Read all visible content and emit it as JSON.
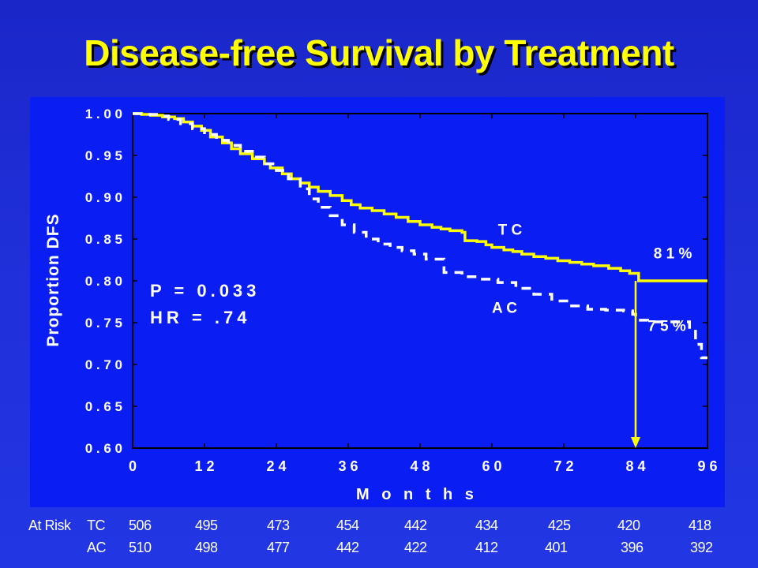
{
  "title": "Disease-free Survival by Treatment",
  "stats": {
    "p_value": "P = 0.033",
    "hazard_ratio": "HR = .74"
  },
  "at_risk": {
    "label": "At Risk",
    "rows": [
      {
        "arm": "TC",
        "counts": [
          "506",
          "495",
          "473",
          "454",
          "442",
          "434",
          "425",
          "420",
          "418"
        ]
      },
      {
        "arm": "AC",
        "counts": [
          "510",
          "498",
          "477",
          "442",
          "422",
          "412",
          "401",
          "396",
          "392"
        ]
      }
    ]
  },
  "colors": {
    "background": "#1f2fd8",
    "plot_area": "#0a1ef4",
    "tc_line": "#ffff00",
    "ac_line": "#ffffff",
    "title": "#ffff00"
  },
  "chart_data": {
    "type": "line",
    "xlabel": "M o n t h s",
    "ylabel": "Proportion DFS",
    "xlim": [
      0,
      96
    ],
    "ylim": [
      0.6,
      1.0
    ],
    "x_ticks": [
      0,
      12,
      24,
      36,
      48,
      60,
      72,
      84,
      96
    ],
    "x_tick_labels": [
      "0",
      "1 2",
      "2 4",
      "3 6",
      "4 8",
      "6 0",
      "7 2",
      "8 4",
      "9 6"
    ],
    "y_ticks": [
      1.0,
      0.95,
      0.9,
      0.85,
      0.8,
      0.75,
      0.7,
      0.65,
      0.6
    ],
    "y_tick_labels": [
      "1 . 0 0",
      "0 . 9 5",
      "0 . 9 0",
      "0 . 8 5",
      "0 . 8 0",
      "0 . 7 5",
      "0 . 7 0",
      "0 . 6 5",
      "0 . 6 0"
    ],
    "grid": false,
    "series": [
      {
        "name": "T C",
        "color": "#ffff00",
        "style": "solid",
        "x": [
          0,
          1.5,
          3,
          5,
          7,
          8.5,
          10,
          11.5,
          13,
          15,
          16.5,
          18,
          20,
          22,
          23,
          25,
          26.5,
          28,
          29.5,
          31,
          33,
          35,
          36.5,
          38,
          40,
          42,
          44,
          46,
          48,
          50,
          51.5,
          53,
          55,
          55.5,
          57.5,
          59,
          60,
          62,
          63.5,
          65,
          67,
          69,
          71,
          73,
          75,
          77,
          79.5,
          81.5,
          83,
          84.5,
          96
        ],
        "y": [
          1.0,
          0.999,
          0.998,
          0.996,
          0.994,
          0.99,
          0.985,
          0.98,
          0.972,
          0.965,
          0.958,
          0.952,
          0.946,
          0.94,
          0.935,
          0.928,
          0.922,
          0.917,
          0.912,
          0.907,
          0.902,
          0.896,
          0.891,
          0.887,
          0.884,
          0.88,
          0.876,
          0.871,
          0.867,
          0.864,
          0.862,
          0.86,
          0.858,
          0.848,
          0.847,
          0.843,
          0.84,
          0.837,
          0.835,
          0.832,
          0.829,
          0.827,
          0.824,
          0.822,
          0.82,
          0.818,
          0.815,
          0.812,
          0.809,
          0.8,
          0.8
        ]
      },
      {
        "name": "A C",
        "color": "#ffffff",
        "style": "dashed",
        "x": [
          0,
          2,
          4,
          6,
          8,
          10,
          12,
          14,
          16,
          18,
          20,
          22,
          24,
          26,
          28,
          29.5,
          31,
          33,
          35,
          37,
          39,
          41,
          43,
          45,
          47,
          49,
          52,
          55,
          58,
          61,
          64,
          67,
          70,
          73,
          76,
          79,
          82,
          83.5,
          84,
          86,
          88,
          90,
          92,
          93,
          94,
          95,
          96
        ],
        "y": [
          1.0,
          0.999,
          0.997,
          0.993,
          0.988,
          0.982,
          0.975,
          0.968,
          0.962,
          0.955,
          0.948,
          0.94,
          0.932,
          0.922,
          0.91,
          0.898,
          0.888,
          0.878,
          0.867,
          0.858,
          0.85,
          0.844,
          0.84,
          0.836,
          0.832,
          0.826,
          0.81,
          0.805,
          0.802,
          0.798,
          0.791,
          0.784,
          0.776,
          0.77,
          0.766,
          0.765,
          0.764,
          0.76,
          0.753,
          0.751,
          0.751,
          0.751,
          0.751,
          0.742,
          0.724,
          0.708,
          0.708
        ]
      }
    ],
    "annotations": [
      {
        "text": "T C",
        "x": 61,
        "y": 0.855
      },
      {
        "text": "A C",
        "x": 60,
        "y": 0.762
      },
      {
        "text": "8 1 %",
        "x": 87,
        "y": 0.827
      },
      {
        "text": "7 5 %",
        "x": 86,
        "y": 0.74
      }
    ],
    "marker_arrow": {
      "x": 84,
      "from_y": 0.8,
      "to_y": 0.6
    }
  }
}
